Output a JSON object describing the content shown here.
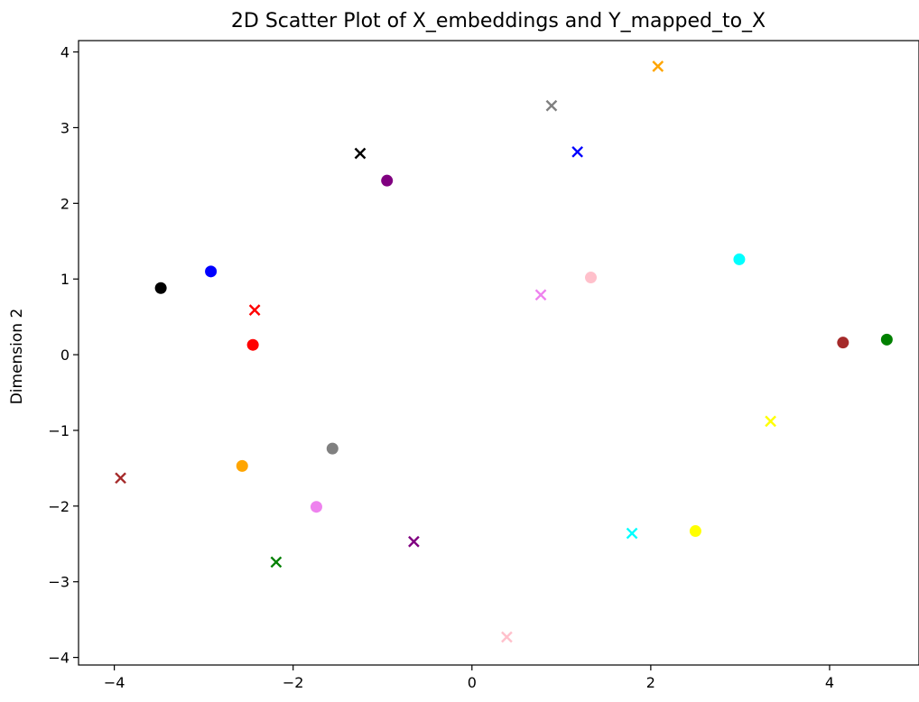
{
  "chart_data": {
    "type": "scatter",
    "title": "2D Scatter Plot of X_embeddings and Y_mapped_to_X",
    "xlabel": "",
    "ylabel": "Dimension 2",
    "xlim": [
      -4.4,
      5.0
    ],
    "ylim": [
      -4.1,
      4.15
    ],
    "x_ticks": [
      -4,
      -2,
      0,
      2,
      4
    ],
    "y_ticks": [
      -4,
      -3,
      -2,
      -1,
      0,
      1,
      2,
      3,
      4
    ],
    "x_tick_labels": [
      "−4",
      "−2",
      "0",
      "2",
      "4"
    ],
    "y_tick_labels": [
      "−4",
      "−3",
      "−2",
      "−1",
      "0",
      "1",
      "2",
      "3",
      "4"
    ],
    "grid": false,
    "series": [
      {
        "marker": "circle",
        "points": [
          {
            "x": -3.48,
            "y": 0.88,
            "color": "#000000"
          },
          {
            "x": -2.92,
            "y": 1.1,
            "color": "#0000ff"
          },
          {
            "x": -2.45,
            "y": 0.13,
            "color": "#ff0000"
          },
          {
            "x": -0.95,
            "y": 2.3,
            "color": "#800080"
          },
          {
            "x": -2.57,
            "y": -1.47,
            "color": "#ffa500"
          },
          {
            "x": -1.56,
            "y": -1.24,
            "color": "#808080"
          },
          {
            "x": -1.74,
            "y": -2.01,
            "color": "#ee82ee"
          },
          {
            "x": 1.33,
            "y": 1.02,
            "color": "#ffc0cb"
          },
          {
            "x": 2.99,
            "y": 1.26,
            "color": "#00ffff"
          },
          {
            "x": 4.15,
            "y": 0.16,
            "color": "#a52a2a"
          },
          {
            "x": 4.64,
            "y": 0.2,
            "color": "#008000"
          },
          {
            "x": 2.5,
            "y": -2.33,
            "color": "#ffff00"
          }
        ]
      },
      {
        "marker": "x",
        "points": [
          {
            "x": -1.25,
            "y": 2.66,
            "color": "#000000"
          },
          {
            "x": 1.18,
            "y": 2.68,
            "color": "#0000ff"
          },
          {
            "x": -2.43,
            "y": 0.59,
            "color": "#ff0000"
          },
          {
            "x": -0.65,
            "y": -2.47,
            "color": "#800080"
          },
          {
            "x": 2.08,
            "y": 3.81,
            "color": "#ffa500"
          },
          {
            "x": 0.89,
            "y": 3.29,
            "color": "#808080"
          },
          {
            "x": 0.77,
            "y": 0.79,
            "color": "#ee82ee"
          },
          {
            "x": 0.39,
            "y": -3.73,
            "color": "#ffc0cb"
          },
          {
            "x": 1.79,
            "y": -2.36,
            "color": "#00ffff"
          },
          {
            "x": -3.93,
            "y": -1.63,
            "color": "#a52a2a"
          },
          {
            "x": -2.19,
            "y": -2.74,
            "color": "#008000"
          },
          {
            "x": 3.34,
            "y": -0.88,
            "color": "#ffff00"
          }
        ]
      }
    ]
  }
}
